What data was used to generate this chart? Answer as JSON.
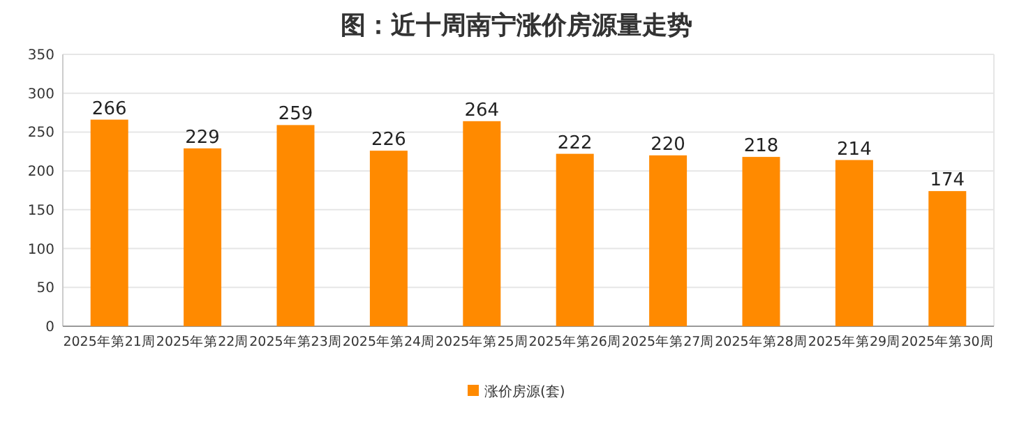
{
  "chart_data": {
    "type": "bar",
    "title": "图：近十周南宁涨价房源量走势",
    "categories": [
      "2025年第21周",
      "2025年第22周",
      "2025年第23周",
      "2025年第24周",
      "2025年第25周",
      "2025年第26周",
      "2025年第27周",
      "2025年第28周",
      "2025年第29周",
      "2025年第30周"
    ],
    "series": [
      {
        "name": "涨价房源(套)",
        "color": "#ff8a00",
        "values": [
          266,
          229,
          259,
          226,
          264,
          222,
          220,
          218,
          214,
          174
        ]
      }
    ],
    "ylim": [
      0,
      350
    ],
    "yticks": [
      0,
      50,
      100,
      150,
      200,
      250,
      300,
      350
    ],
    "grid": "y",
    "legend": "bottom",
    "data_labels": true
  }
}
